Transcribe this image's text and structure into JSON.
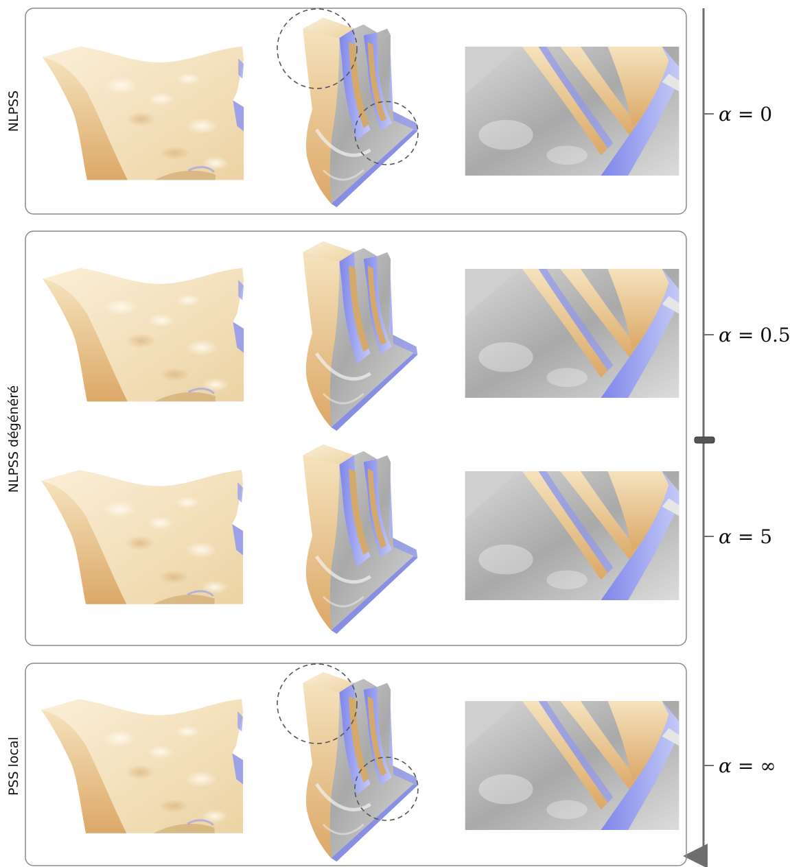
{
  "groups": [
    {
      "label": "NLPSS"
    },
    {
      "label": "NLPSS dégénéré"
    },
    {
      "label": "PSS local"
    }
  ],
  "alpha_scale": {
    "symbol": "α",
    "ticks": [
      {
        "label": "0"
      },
      {
        "label": "0.5"
      },
      {
        "label": "5"
      },
      {
        "label": "∞"
      }
    ]
  },
  "colors": {
    "surface_light": "#f6e7c8",
    "surface_tan": "#e6bd7e",
    "surface_grey": "#b4b4b4",
    "surface_blue": "#8f97f0",
    "frame": "#8a8a8a",
    "axis": "#6e6e6e"
  }
}
